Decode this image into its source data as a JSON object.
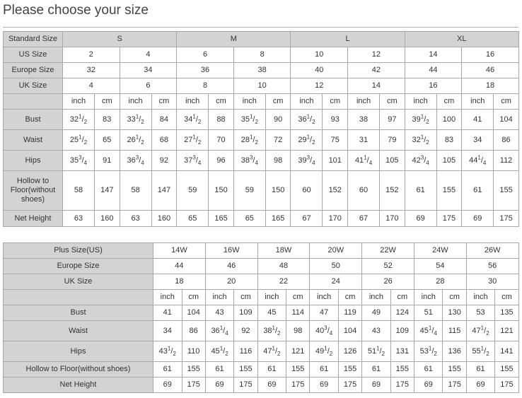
{
  "title": "Please choose your size",
  "standard_table": {
    "header_label": "Standard Size",
    "groups": [
      "S",
      "M",
      "L",
      "XL"
    ],
    "size_rows": [
      {
        "label": "US Size",
        "values": [
          "2",
          "4",
          "6",
          "8",
          "10",
          "12",
          "14",
          "16"
        ]
      },
      {
        "label": "Europe Size",
        "values": [
          "32",
          "34",
          "36",
          "38",
          "40",
          "42",
          "44",
          "46"
        ]
      },
      {
        "label": "UK Size",
        "values": [
          "4",
          "6",
          "8",
          "10",
          "12",
          "14",
          "16",
          "18"
        ]
      }
    ],
    "units": [
      "inch",
      "cm"
    ],
    "measure_rows": [
      {
        "label": "Bust",
        "values": [
          "32 1/2",
          "83",
          "33 1/2",
          "84",
          "34 1/2",
          "88",
          "35 1/2",
          "90",
          "36 1/2",
          "93",
          "38",
          "97",
          "39 1/2",
          "100",
          "41",
          "104"
        ]
      },
      {
        "label": "Waist",
        "values": [
          "25 1/2",
          "65",
          "26 1/2",
          "68",
          "27 1/2",
          "70",
          "28 1/2",
          "72",
          "29 1/2",
          "75",
          "31",
          "79",
          "32 1/2",
          "83",
          "34",
          "86"
        ]
      },
      {
        "label": "Hips",
        "values": [
          "35 3/4",
          "91",
          "36 3/4",
          "92",
          "37 3/4",
          "96",
          "38 3/4",
          "98",
          "39 3/4",
          "101",
          "41 1/4",
          "105",
          "42 3/4",
          "105",
          "44 1/4",
          "112"
        ]
      },
      {
        "label": "Hollow to Floor(without shoes)",
        "values": [
          "58",
          "147",
          "58",
          "147",
          "59",
          "150",
          "59",
          "150",
          "60",
          "152",
          "60",
          "152",
          "61",
          "155",
          "61",
          "155"
        ]
      },
      {
        "label": "Net Height",
        "values": [
          "63",
          "160",
          "63",
          "160",
          "65",
          "165",
          "65",
          "165",
          "67",
          "170",
          "67",
          "170",
          "69",
          "175",
          "69",
          "175"
        ]
      }
    ]
  },
  "plus_table": {
    "size_rows": [
      {
        "label": "Plus Size(US)",
        "values": [
          "14W",
          "16W",
          "18W",
          "20W",
          "22W",
          "24W",
          "26W"
        ]
      },
      {
        "label": "Europe Size",
        "values": [
          "44",
          "46",
          "48",
          "50",
          "52",
          "54",
          "56"
        ]
      },
      {
        "label": "UK Size",
        "values": [
          "18",
          "20",
          "22",
          "24",
          "26",
          "28",
          "30"
        ]
      }
    ],
    "units": [
      "inch",
      "cm"
    ],
    "measure_rows": [
      {
        "label": "Bust",
        "values": [
          "41",
          "104",
          "43",
          "109",
          "45",
          "114",
          "47",
          "119",
          "49",
          "124",
          "51",
          "130",
          "53",
          "135"
        ]
      },
      {
        "label": "Waist",
        "values": [
          "34",
          "86",
          "36 1/4",
          "92",
          "38 1/2",
          "98",
          "40 3/4",
          "104",
          "43",
          "109",
          "45 1/4",
          "115",
          "47 1/2",
          "121"
        ]
      },
      {
        "label": "Hips",
        "values": [
          "43 1/2",
          "110",
          "45 1/2",
          "116",
          "47 1/2",
          "121",
          "49 1/2",
          "126",
          "51 1/2",
          "131",
          "53 1/2",
          "136",
          "55 1/2",
          "141"
        ]
      },
      {
        "label": "Hollow to Floor(without shoes)",
        "values": [
          "61",
          "155",
          "61",
          "155",
          "61",
          "155",
          "61",
          "155",
          "61",
          "155",
          "61",
          "155",
          "61",
          "155"
        ]
      },
      {
        "label": "Net Height",
        "values": [
          "69",
          "175",
          "69",
          "175",
          "69",
          "175",
          "69",
          "175",
          "69",
          "175",
          "69",
          "175",
          "69",
          "175"
        ]
      }
    ]
  },
  "colors": {
    "header_bg": "#d3d3d3",
    "border": "#a8a8a8",
    "text": "#333333"
  }
}
